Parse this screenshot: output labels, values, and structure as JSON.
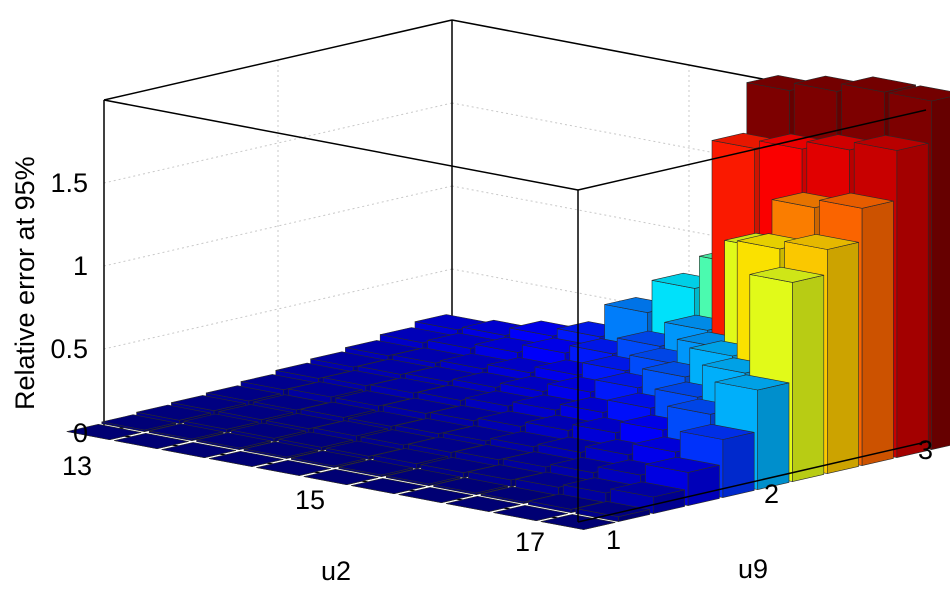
{
  "chart_data": {
    "type": "bar3d",
    "title": "",
    "xlabel": "u2",
    "ylabel": "u9",
    "zlabel": "Relative error at 95%",
    "x_ticks": [
      "13",
      "15",
      "17"
    ],
    "y_ticks": [
      "1",
      "2",
      "3"
    ],
    "z_ticks": [
      "0",
      "0.5",
      "1",
      "1.5"
    ],
    "zlim": [
      0,
      2.0
    ],
    "grid": true,
    "colormap": "jet",
    "rows_u9": [
      1.0,
      1.2,
      1.4,
      1.6,
      1.8,
      2.0,
      2.2,
      2.4,
      2.6,
      2.8,
      3.0
    ],
    "cols_u2": [
      13.0,
      13.4,
      13.8,
      14.2,
      14.6,
      15.0,
      15.4,
      15.8,
      16.2,
      16.6,
      17.0
    ],
    "values": [
      [
        0.0,
        0.0,
        0.0,
        0.0,
        0.0,
        0.0,
        0.0,
        0.0,
        0.0,
        0.0,
        0.0
      ],
      [
        0.01,
        0.01,
        0.01,
        0.01,
        0.01,
        0.01,
        0.01,
        0.01,
        0.01,
        0.02,
        0.03
      ],
      [
        0.02,
        0.02,
        0.02,
        0.02,
        0.02,
        0.03,
        0.03,
        0.04,
        0.05,
        0.07,
        0.1
      ],
      [
        0.03,
        0.03,
        0.03,
        0.04,
        0.04,
        0.05,
        0.06,
        0.07,
        0.09,
        0.13,
        0.2
      ],
      [
        0.04,
        0.04,
        0.05,
        0.05,
        0.06,
        0.07,
        0.09,
        0.11,
        0.15,
        0.22,
        0.35
      ],
      [
        0.06,
        0.07,
        0.07,
        0.08,
        0.09,
        0.11,
        0.14,
        0.18,
        0.25,
        0.4,
        0.6
      ],
      [
        0.08,
        0.09,
        0.1,
        0.11,
        0.13,
        0.16,
        0.2,
        0.28,
        0.4,
        0.6,
        1.2
      ],
      [
        0.1,
        0.11,
        0.12,
        0.14,
        0.17,
        0.22,
        0.3,
        0.42,
        0.6,
        1.3,
        1.35
      ],
      [
        0.12,
        0.13,
        0.15,
        0.18,
        0.22,
        0.3,
        0.4,
        0.55,
        1.2,
        1.5,
        1.55
      ],
      [
        0.15,
        0.17,
        0.2,
        0.25,
        0.3,
        0.4,
        0.55,
        1.7,
        1.75,
        1.8,
        1.85
      ],
      [
        0.18,
        0.2,
        0.25,
        0.3,
        0.5,
        0.7,
        0.9,
        2.0,
        2.05,
        2.1,
        2.1
      ]
    ]
  }
}
